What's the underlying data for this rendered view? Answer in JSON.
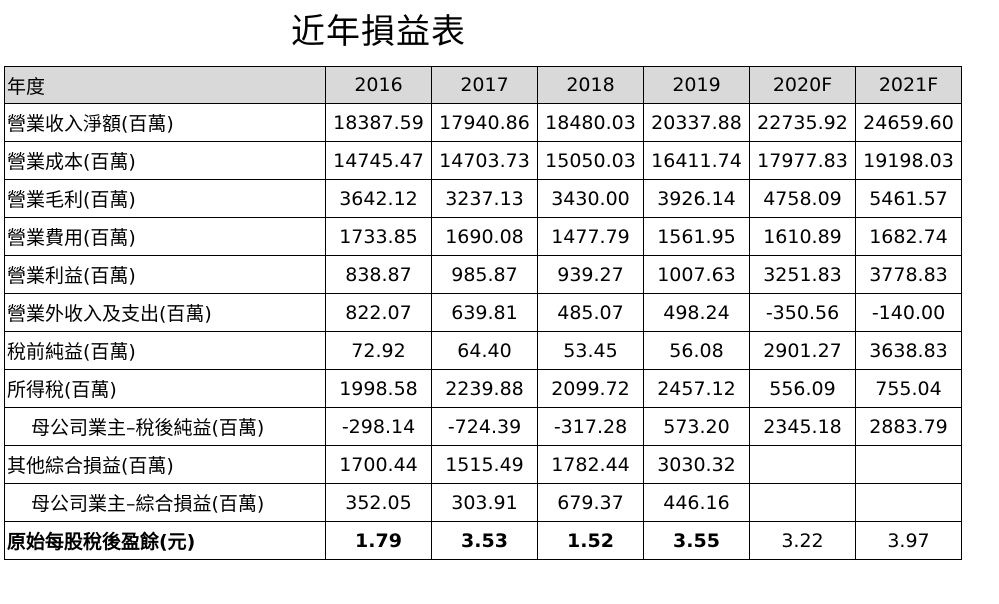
{
  "title": "近年損益表",
  "columns": [
    "年度",
    "2016",
    "2017",
    "2018",
    "2019",
    "2020F",
    "2021F"
  ],
  "rows": [
    {
      "label": "營業收入淨額(百萬)",
      "values": [
        "18387.59",
        "17940.86",
        "18480.03",
        "20337.88",
        "22735.92",
        "24659.60"
      ]
    },
    {
      "label": "營業成本(百萬)",
      "values": [
        "14745.47",
        "14703.73",
        "15050.03",
        "16411.74",
        "17977.83",
        "19198.03"
      ]
    },
    {
      "label": "營業毛利(百萬)",
      "values": [
        "3642.12",
        "3237.13",
        "3430.00",
        "3926.14",
        "4758.09",
        "5461.57"
      ]
    },
    {
      "label": "營業費用(百萬)",
      "values": [
        "1733.85",
        "1690.08",
        "1477.79",
        "1561.95",
        "1610.89",
        "1682.74"
      ]
    },
    {
      "label": "營業利益(百萬)",
      "values": [
        "838.87",
        "985.87",
        "939.27",
        "1007.63",
        "3251.83",
        "3778.83"
      ]
    },
    {
      "label": "營業外收入及支出(百萬)",
      "values": [
        "822.07",
        "639.81",
        "485.07",
        "498.24",
        "-350.56",
        "-140.00"
      ]
    },
    {
      "label": "稅前純益(百萬)",
      "values": [
        "72.92",
        "64.40",
        "53.45",
        "56.08",
        "2901.27",
        "3638.83"
      ]
    },
    {
      "label": "所得稅(百萬)",
      "values": [
        "1998.58",
        "2239.88",
        "2099.72",
        "2457.12",
        "556.09",
        "755.04"
      ]
    },
    {
      "label": "母公司業主–稅後純益(百萬)",
      "values": [
        "-298.14",
        "-724.39",
        "-317.28",
        "573.20",
        "2345.18",
        "2883.79"
      ]
    },
    {
      "label": "其他綜合損益(百萬)",
      "values": [
        "1700.44",
        "1515.49",
        "1782.44",
        "3030.32",
        "",
        ""
      ]
    },
    {
      "label": "母公司業主–綜合損益(百萬)",
      "values": [
        "352.05",
        "303.91",
        "679.37",
        "446.16",
        "",
        ""
      ]
    },
    {
      "label": "原始每股稅後盈餘(元)",
      "values": [
        "1.79",
        "3.53",
        "1.52",
        "3.55",
        "3.22",
        "3.97"
      ]
    }
  ],
  "colors": {
    "header_bg": "#d9d9d9",
    "border": "#000000"
  }
}
